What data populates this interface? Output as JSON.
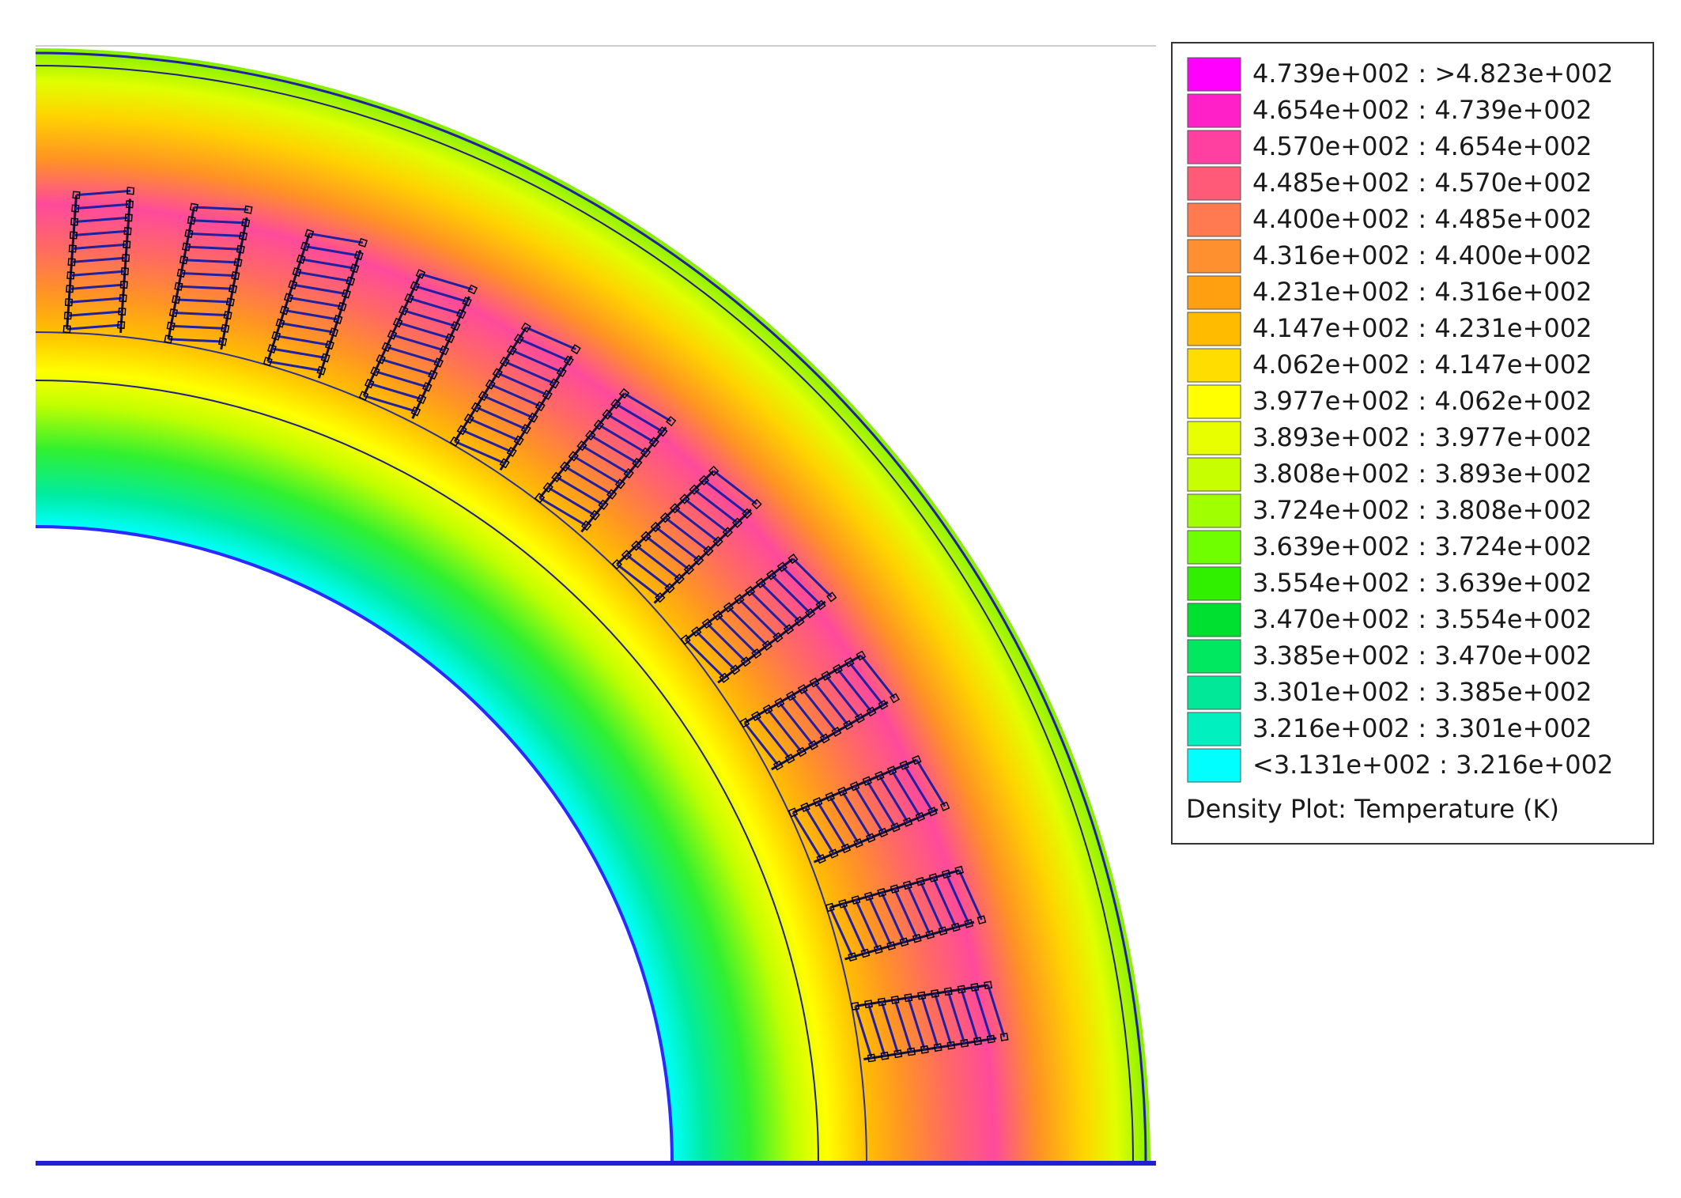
{
  "legend": {
    "rows": [
      {
        "label": "4.739e+002 : >4.823e+002",
        "color": "#ff00ff"
      },
      {
        "label": "4.654e+002 : 4.739e+002",
        "color": "#ff20c8"
      },
      {
        "label": "4.570e+002 : 4.654e+002",
        "color": "#ff40a0"
      },
      {
        "label": "4.485e+002 : 4.570e+002",
        "color": "#ff5a78"
      },
      {
        "label": "4.400e+002 : 4.485e+002",
        "color": "#ff7a50"
      },
      {
        "label": "4.316e+002 : 4.400e+002",
        "color": "#ff9030"
      },
      {
        "label": "4.231e+002 : 4.316e+002",
        "color": "#ffa010"
      },
      {
        "label": "4.147e+002 : 4.231e+002",
        "color": "#ffbb00"
      },
      {
        "label": "4.062e+002 : 4.147e+002",
        "color": "#ffdd00"
      },
      {
        "label": "3.977e+002 : 4.062e+002",
        "color": "#ffff00"
      },
      {
        "label": "3.893e+002 : 3.977e+002",
        "color": "#e8ff00"
      },
      {
        "label": "3.808e+002 : 3.893e+002",
        "color": "#c8ff00"
      },
      {
        "label": "3.724e+002 : 3.808e+002",
        "color": "#a0ff00"
      },
      {
        "label": "3.639e+002 : 3.724e+002",
        "color": "#70ff00"
      },
      {
        "label": "3.554e+002 : 3.639e+002",
        "color": "#30f000"
      },
      {
        "label": "3.470e+002 : 3.554e+002",
        "color": "#00e030"
      },
      {
        "label": "3.385e+002 : 3.470e+002",
        "color": "#00e860"
      },
      {
        "label": "3.301e+002 : 3.385e+002",
        "color": "#00e898"
      },
      {
        "label": "3.216e+002 : 3.301e+002",
        "color": "#00f0c0"
      },
      {
        "label": "<3.131e+002 : 3.216e+002",
        "color": "#00ffff"
      }
    ],
    "title": "Density Plot: Temperature (K)"
  }
}
